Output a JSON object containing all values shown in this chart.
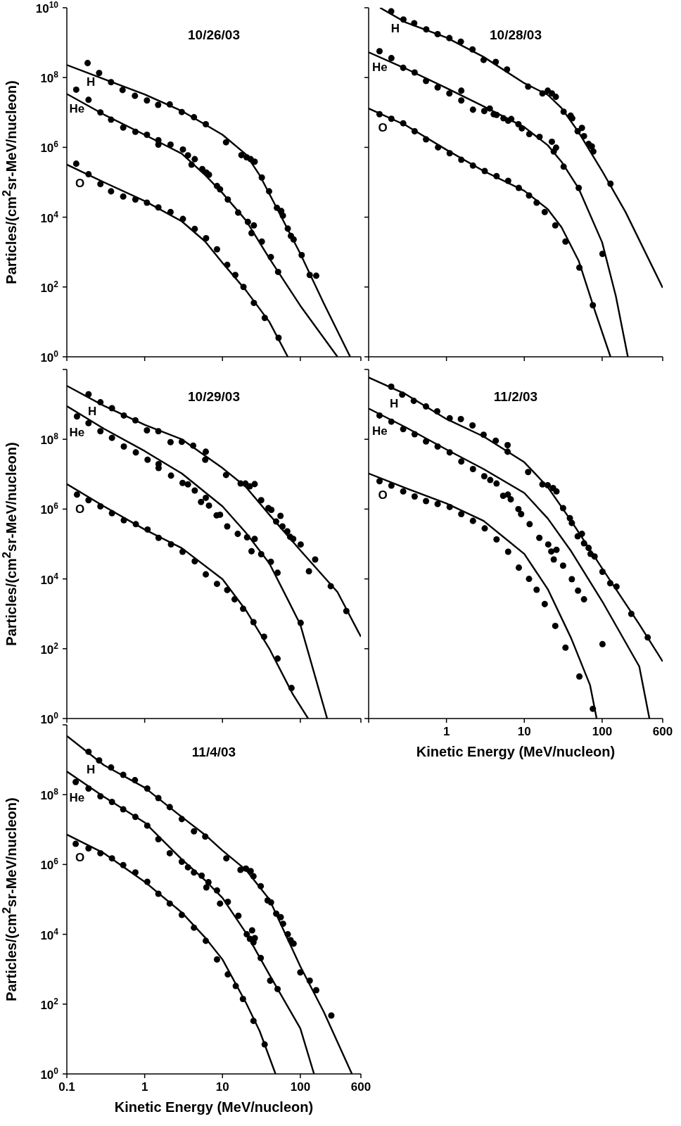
{
  "chart_data": [
    {
      "type": "scatter",
      "title": "10/26/03",
      "ylabel": "Particles/(cm$^{2}$sr-MeV/nucleon)",
      "xlim": [
        0.1,
        600
      ],
      "xticks": [
        0.1,
        1,
        10,
        100,
        600
      ],
      "ylim": [
        1,
        10000000000.0
      ],
      "yticks": [
        {
          "value": 1,
          "label": "10$^{0}$"
        },
        {
          "value": 100,
          "label": "10$^{2}$"
        },
        {
          "value": 10000.0,
          "label": "10$^{4}$"
        },
        {
          "value": 1000000.0,
          "label": "10$^{6}$"
        },
        {
          "value": 100000000.0,
          "label": "10$^{8}$"
        },
        {
          "value": 10000000000.0,
          "label": "10$^{10}$"
        }
      ],
      "log": "xy",
      "tick_labels": "y",
      "series": [
        {
          "name": "H",
          "color": "#000000",
          "marker": "circle",
          "x": [
            0.185,
            0.26,
            0.37,
            0.52,
            0.75,
            1.07,
            1.49,
            2.1,
            3.0,
            4.3,
            6.1,
            11.1,
            17.5,
            20.4,
            23,
            25.9,
            32,
            39.7,
            50,
            56.9,
            59.7,
            69,
            75.7,
            82,
            104,
            132,
            160
          ],
          "values": [
            260000000.0,
            135000000.0,
            74000000.0,
            44000000.0,
            30000000.0,
            22000000.0,
            16500000.0,
            17000000.0,
            10300000.0,
            7300000.0,
            4600000.0,
            1400000.0,
            600000.0,
            520000.0,
            460000.0,
            390000.0,
            137000.0,
            55000.0,
            18500.0,
            15000.0,
            11000.0,
            4700.0,
            2900.0,
            2300.0,
            820.0,
            220.0,
            210.0
          ]
        },
        {
          "name": "He",
          "color": "#000000",
          "marker": "circle",
          "x": [
            0.132,
            0.19,
            0.27,
            0.37,
            0.53,
            0.76,
            1.07,
            1.5,
            1.5,
            2.15,
            3.1,
            3.6,
            4.4,
            4.0,
            5.5,
            6.2,
            6.7,
            8.5,
            9.3,
            11.7,
            15.9,
            21.2,
            25.3,
            23.6,
            32,
            41.8,
            51.8
          ],
          "values": [
            45000000.0,
            23000000.0,
            10000000.0,
            6200000.0,
            3700000.0,
            2800000.0,
            2300000.0,
            1600000.0,
            1200000.0,
            1200000.0,
            870000.0,
            590000.0,
            460000.0,
            320000.0,
            240000.0,
            190000.0,
            165000.0,
            78000.0,
            63000.0,
            32000.0,
            13500.0,
            7300.0,
            5800.0,
            3500.0,
            2000.0,
            720.0,
            270.0
          ]
        },
        {
          "name": "O",
          "color": "#000000",
          "marker": "circle",
          "x": [
            0.132,
            0.19,
            0.27,
            0.37,
            0.53,
            0.76,
            1.07,
            1.5,
            2.15,
            3.1,
            4.4,
            6.15,
            8.5,
            11.5,
            14.6,
            18.6,
            25.3,
            34.9,
            52.5
          ],
          "values": [
            340000.0,
            170000.0,
            89000.0,
            55000.0,
            39000.0,
            32000.0,
            26000.0,
            19000.0,
            14000.0,
            8900.0,
            4600.0,
            2500.0,
            1200.0,
            430.0,
            220.0,
            100.0,
            35,
            13,
            3.5
          ]
        },
        {
          "type": "line",
          "color": "#000000",
          "x": [
            0.1,
            0.3,
            1,
            3,
            6,
            10,
            20,
            30,
            50,
            100,
            200,
            437
          ],
          "values": [
            230000000.0,
            90000000.0,
            33000000.0,
            11000000.0,
            4500000.0,
            2300000.0,
            630000.0,
            160000.0,
            18000.0,
            900.0,
            34,
            1
          ]
        },
        {
          "type": "line",
          "color": "#000000",
          "x": [
            0.1,
            0.3,
            1,
            3,
            6,
            10,
            20,
            40,
            100,
            300
          ],
          "values": [
            34000000.0,
            8700000.0,
            2300000.0,
            660000.0,
            160000.0,
            49000.0,
            8100.0,
            660.0,
            29,
            1
          ]
        },
        {
          "type": "line",
          "color": "#000000",
          "x": [
            0.1,
            0.3,
            1,
            3,
            6,
            10,
            20,
            40,
            69
          ],
          "values": [
            320000.0,
            100000.0,
            29000.0,
            7600.0,
            2000.0,
            490.0,
            80,
            10,
            1
          ]
        }
      ]
    },
    {
      "type": "scatter",
      "title": "10/28/03",
      "xlim": [
        0.1,
        600
      ],
      "xticks": [
        0.1,
        1,
        10,
        100,
        600
      ],
      "ylim": [
        1,
        10000000000.0
      ],
      "yticks": [
        1,
        100,
        10000.0,
        1000000.0,
        100000000.0,
        10000000000.0
      ],
      "log": "xy",
      "tick_labels": false,
      "series": [
        {
          "name": "H",
          "color": "#000000",
          "marker": "circle",
          "x": [
            0.195,
            0.28,
            0.385,
            0.55,
            0.77,
            1.09,
            1.53,
            2.16,
            3.0,
            4.3,
            6.0,
            11.2,
            17.1,
            20,
            22.6,
            25.4,
            32,
            39.4,
            41.3,
            48.5,
            55,
            58.5,
            67,
            73.7,
            77,
            128
          ],
          "values": [
            7900000000.0,
            4600000000.0,
            3600000000.0,
            2400000000.0,
            1750000000.0,
            1350000000.0,
            1070000000.0,
            640000000.0,
            320000000.0,
            280000000.0,
            170000000.0,
            55000000.0,
            35000000.0,
            42000000.0,
            35000000.0,
            28000000.0,
            10500000.0,
            8100000.0,
            6800000.0,
            2900000.0,
            3600000.0,
            2100000.0,
            1250000.0,
            1070000.0,
            760000.0,
            91000.0
          ]
        },
        {
          "name": "He",
          "color": "#000000",
          "marker": "circle",
          "x": [
            0.138,
            0.196,
            0.278,
            0.39,
            0.546,
            0.77,
            1.09,
            1.55,
            1.55,
            2.19,
            3.06,
            3.6,
            4.05,
            4.4,
            5.4,
            6.2,
            6.8,
            8.4,
            9.3,
            11.6,
            15.7,
            22.6,
            23.9,
            25.6,
            32,
            50,
            101
          ],
          "values": [
            570000000.0,
            360000000.0,
            190000000.0,
            140000000.0,
            80000000.0,
            52000000.0,
            35000000.0,
            42000000.0,
            22000000.0,
            12000000.0,
            11000000.0,
            13000000.0,
            8900000.0,
            8500000.0,
            6800000.0,
            5800000.0,
            6500000.0,
            4600000.0,
            3500000.0,
            2400000.0,
            2000000.0,
            1450000.0,
            760000.0,
            980000.0,
            280000.0,
            69000.0,
            890.0
          ]
        },
        {
          "name": "O",
          "color": "#000000",
          "marker": "circle",
          "x": [
            0.138,
            0.196,
            0.278,
            0.39,
            0.546,
            0.78,
            1.1,
            1.55,
            2.19,
            3.1,
            4.4,
            6.2,
            8.5,
            11.5,
            14.4,
            18.3,
            25,
            33.8,
            51,
            76
          ],
          "values": [
            8900000.0,
            6600000.0,
            4900000.0,
            2900000.0,
            1700000.0,
            1000000.0,
            680000.0,
            440000.0,
            300000.0,
            210000.0,
            150000.0,
            110000.0,
            69000.0,
            42000.0,
            26000.0,
            14000.0,
            5800.0,
            2000.0,
            360.0,
            30
          ]
        },
        {
          "type": "line",
          "color": "#000000",
          "x": [
            0.14,
            0.3,
            1,
            3,
            10,
            20,
            30,
            50,
            100,
            200,
            600
          ],
          "values": [
            10000000000.0,
            3800000000.0,
            1400000000.0,
            390000000.0,
            69000000.0,
            32000000.0,
            13500000.0,
            2700000.0,
            210000.0,
            14000.0,
            95
          ]
        },
        {
          "type": "line",
          "color": "#000000",
          "x": [
            0.1,
            0.3,
            1,
            3,
            10,
            20,
            30,
            50,
            100,
            150,
            214
          ],
          "values": [
            530000000.0,
            180000000.0,
            50000000.0,
            15000000.0,
            3800000.0,
            1150000.0,
            390000.0,
            66000.0,
            1900.0,
            55,
            1
          ]
        },
        {
          "type": "line",
          "color": "#000000",
          "x": [
            0.1,
            0.3,
            1,
            3,
            10,
            20,
            30,
            50,
            80,
            128
          ],
          "values": [
            13000000.0,
            4300000.0,
            850000.0,
            210000.0,
            57000.0,
            17000.0,
            5200.0,
            560.0,
            22,
            1
          ]
        }
      ]
    },
    {
      "type": "scatter",
      "title": "10/29/03",
      "ylabel": "Particles/(cm$^{2}$sr-MeV/nucleon)",
      "xlim": [
        0.1,
        600
      ],
      "xticks": [
        0.1,
        1,
        10,
        100,
        600
      ],
      "ylim": [
        1,
        10000000000.0
      ],
      "yticks": [
        {
          "value": 1,
          "label": "10$^{0}$"
        },
        {
          "value": 100,
          "label": "10$^{2}$"
        },
        {
          "value": 10000.0,
          "label": "10$^{4}$"
        },
        {
          "value": 1000000.0,
          "label": "10$^{6}$"
        },
        {
          "value": 100000000.0,
          "label": "10$^{8}$"
        },
        {
          "value": 10000000000.0,
          "label": null
        }
      ],
      "log": "xy",
      "tick_labels": "y",
      "series": [
        {
          "name": "H",
          "color": "#000000",
          "marker": "circle",
          "x": [
            0.19,
            0.27,
            0.38,
            0.54,
            0.76,
            1.07,
            1.5,
            2.15,
            3.0,
            4.2,
            6.1,
            6.0,
            11.1,
            17.1,
            19.7,
            22.4,
            25.9,
            31.4,
            38.9,
            42.4,
            48.9,
            55.6,
            58.9,
            68,
            74,
            81,
            101,
            129,
            155,
            246,
            390
          ],
          "values": [
            1950000000.0,
            1150000000.0,
            780000000.0,
            480000000.0,
            350000000.0,
            180000000.0,
            170000000.0,
            83000000.0,
            85000000.0,
            66000000.0,
            44000000.0,
            26000000.0,
            9500000.0,
            5400000.0,
            5400000.0,
            4500000.0,
            5200000.0,
            1800000.0,
            1070000.0,
            950000.0,
            440000.0,
            640000.0,
            320000.0,
            230000.0,
            160000.0,
            140000.0,
            97000.0,
            16500.0,
            36000.0,
            6200.0,
            1200.0
          ]
        },
        {
          "name": "He",
          "color": "#000000",
          "marker": "circle",
          "x": [
            0.135,
            0.19,
            0.27,
            0.38,
            0.54,
            0.77,
            1.09,
            1.51,
            1.51,
            2.18,
            3.07,
            3.6,
            4.4,
            5.3,
            6.1,
            6.7,
            8.4,
            9.3,
            11.5,
            15.7,
            20.7,
            25.9,
            23.6,
            31.4,
            41.8,
            51,
            101
          ],
          "values": [
            450000000.0,
            290000000.0,
            170000000.0,
            110000000.0,
            62000000.0,
            42000000.0,
            26000000.0,
            19500000.0,
            15000000.0,
            9100000.0,
            5600000.0,
            5100000.0,
            3400000.0,
            1600000.0,
            2100000.0,
            1260000.0,
            660000.0,
            690000.0,
            320000.0,
            195000.0,
            155000.0,
            140000.0,
            62000.0,
            51000.0,
            31000.0,
            15000.0,
            550.0
          ]
        },
        {
          "name": "O",
          "color": "#000000",
          "marker": "circle",
          "x": [
            0.135,
            0.19,
            0.27,
            0.38,
            0.54,
            0.77,
            1.09,
            1.51,
            2.18,
            3.07,
            4.4,
            6.1,
            8.5,
            11.5,
            14.3,
            18.4,
            25,
            34.2,
            51,
            77
          ],
          "values": [
            2600000.0,
            1800000.0,
            1200000.0,
            760000.0,
            480000.0,
            370000.0,
            260000.0,
            150000.0,
            98000.0,
            60000.0,
            32000.0,
            13500.0,
            7200.0,
            4800.0,
            2600.0,
            1400.0,
            580.0,
            220.0,
            52,
            7.5
          ]
        },
        {
          "type": "line",
          "color": "#000000",
          "x": [
            0.1,
            0.3,
            1,
            3,
            10,
            20,
            40,
            100,
            300,
            600
          ],
          "values": [
            3400000000.0,
            910000000.0,
            260000000.0,
            100000000.0,
            15000000.0,
            4300000.0,
            690000.0,
            66000.0,
            4200.0,
            220.0
          ]
        },
        {
          "type": "line",
          "color": "#000000",
          "x": [
            0.1,
            0.3,
            1,
            3,
            10,
            20,
            40,
            70,
            100,
            221
          ],
          "values": [
            890000000.0,
            200000000.0,
            46000000.0,
            10500000.0,
            1200000.0,
            210000.0,
            28000.0,
            2400.0,
            490.0,
            1
          ]
        },
        {
          "type": "line",
          "color": "#000000",
          "x": [
            0.1,
            0.3,
            1,
            3,
            10,
            20,
            40,
            80,
            126
          ],
          "values": [
            5200000.0,
            1200000.0,
            260000.0,
            76000.0,
            9800.0,
            1260.0,
            100.0,
            5,
            1
          ]
        }
      ]
    },
    {
      "type": "scatter",
      "title": "11/2/03",
      "xlabel": "Kinetic Energy (MeV/nucleon)",
      "xlim": [
        0.1,
        600
      ],
      "xticks": [
        {
          "value": 0.1,
          "label": null
        },
        1,
        10,
        100,
        600
      ],
      "ylim": [
        1,
        10000000000.0
      ],
      "yticks": [
        1,
        100,
        10000.0,
        1000000.0,
        100000000.0,
        10000000000.0
      ],
      "log": "xy",
      "tick_labels": "x",
      "series": [
        {
          "name": "H",
          "color": "#000000",
          "marker": "circle",
          "x": [
            0.195,
            0.27,
            0.38,
            0.546,
            0.76,
            1.1,
            1.53,
            2.16,
            3.0,
            4.3,
            6.1,
            6.1,
            11.2,
            17.1,
            20,
            23.4,
            25.9,
            31.5,
            38.5,
            40.8,
            48.5,
            55,
            58.5,
            67,
            71,
            80,
            101,
            127,
            153,
            237,
            385
          ],
          "values": [
            3200000000.0,
            1900000000.0,
            1260000000.0,
            870000000.0,
            630000000.0,
            400000000.0,
            380000000.0,
            250000000.0,
            135000000.0,
            91000000.0,
            68000000.0,
            44000000.0,
            11500000.0,
            5100000.0,
            4800000.0,
            4000000.0,
            3200000.0,
            1070000.0,
            550000.0,
            400000.0,
            166000.0,
            195000.0,
            105000.0,
            77000.0,
            52000.0,
            44000.0,
            16000.0,
            7500.0,
            6000.0,
            1000.0,
            210.0
          ]
        },
        {
          "name": "He",
          "color": "#000000",
          "marker": "circle",
          "x": [
            0.138,
            0.196,
            0.278,
            0.39,
            0.546,
            0.77,
            1.1,
            1.55,
            2.19,
            3.06,
            3.65,
            4.4,
            5.35,
            6.15,
            6.7,
            8.4,
            9.1,
            11.7,
            15.6,
            20.3,
            22.2,
            25.9,
            23.9,
            31.5,
            40.8,
            49,
            58.5,
            101
          ],
          "values": [
            480000000.0,
            320000000.0,
            195000000.0,
            140000000.0,
            87000000.0,
            62000000.0,
            42000000.0,
            23000000.0,
            14000000.0,
            8700000.0,
            6800000.0,
            5400000.0,
            2400000.0,
            2600000.0,
            1900000.0,
            1000000.0,
            720000.0,
            370000.0,
            150000.0,
            97000.0,
            61000.0,
            68000.0,
            36000.0,
            24000.0,
            9800.0,
            4600.0,
            2600.0,
            135.0
          ]
        },
        {
          "name": "O",
          "color": "#000000",
          "marker": "circle",
          "x": [
            0.138,
            0.196,
            0.278,
            0.39,
            0.546,
            0.77,
            1.1,
            1.55,
            2.19,
            3.1,
            4.4,
            6.2,
            8.5,
            11.5,
            14.4,
            18.3,
            25,
            33.8,
            51,
            76
          ],
          "values": [
            6300000.0,
            4700000.0,
            3200000.0,
            2300000.0,
            1700000.0,
            1400000.0,
            1150000.0,
            720000.0,
            460000.0,
            280000.0,
            135000.0,
            60000.0,
            21000.0,
            10000.0,
            4900.0,
            1900.0,
            450.0,
            107.0,
            16,
            1.9
          ]
        },
        {
          "type": "line",
          "color": "#000000",
          "x": [
            0.1,
            0.3,
            1,
            3,
            10,
            20,
            40,
            100,
            300,
            600
          ],
          "values": [
            5900000000.0,
            1950000000.0,
            380000000.0,
            120000000.0,
            22000000.0,
            4300000.0,
            460000.0,
            20000.0,
            500.0,
            43
          ]
        },
        {
          "type": "line",
          "color": "#000000",
          "x": [
            0.1,
            0.3,
            1,
            3,
            10,
            20,
            40,
            100,
            300,
            405
          ],
          "values": [
            760000000.0,
            220000000.0,
            51000000.0,
            14000000.0,
            2900000.0,
            540000.0,
            62000.0,
            2300.0,
            31,
            1
          ]
        },
        {
          "type": "line",
          "color": "#000000",
          "x": [
            0.1,
            0.3,
            1,
            3,
            10,
            20,
            40,
            70,
            85
          ],
          "values": [
            10500000.0,
            4000000.0,
            1450000.0,
            460000.0,
            52000.0,
            5100.0,
            200.0,
            9,
            1
          ]
        }
      ]
    },
    {
      "type": "scatter",
      "title": "11/4/03",
      "xlabel": "Kinetic Energy (MeV/nucleon)",
      "ylabel": "Particles/(cm$^{2}$sr-MeV/nucleon)",
      "xlim": [
        0.1,
        600
      ],
      "xticks": [
        0.1,
        1,
        10,
        100,
        600
      ],
      "ylim": [
        1,
        10000000000.0
      ],
      "yticks": [
        {
          "value": 1,
          "label": "10$^{0}$"
        },
        {
          "value": 100,
          "label": "10$^{2}$"
        },
        {
          "value": 10000.0,
          "label": "10$^{4}$"
        },
        {
          "value": 1000000.0,
          "label": "10$^{6}$"
        },
        {
          "value": 100000000.0,
          "label": "10$^{8}$"
        },
        {
          "value": 10000000000.0,
          "label": null
        }
      ],
      "log": "xy",
      "series": [
        {
          "name": "H",
          "color": "#000000",
          "marker": "circle",
          "x": [
            0.19,
            0.26,
            0.37,
            0.53,
            0.75,
            1.08,
            1.5,
            2.1,
            3.0,
            4.3,
            6.0,
            11.2,
            17,
            20,
            23,
            25,
            31,
            38,
            42,
            49,
            56,
            60,
            69,
            75,
            82,
            100,
            132,
            160,
            250
          ],
          "values": [
            1700000000.0,
            960000000.0,
            600000000.0,
            370000000.0,
            260000000.0,
            150000000.0,
            80000000.0,
            44000000.0,
            20000000.0,
            8900000.0,
            6300000.0,
            1500000.0,
            700000.0,
            760000.0,
            650000.0,
            460000.0,
            240000.0,
            93000.0,
            82000.0,
            39000.0,
            31000.0,
            20000.0,
            10000.0,
            6800.0,
            5400.0,
            810.0,
            470.0,
            250.0,
            47
          ]
        },
        {
          "name": "He",
          "color": "#000000",
          "marker": "circle",
          "x": [
            0.13,
            0.19,
            0.27,
            0.38,
            0.53,
            0.76,
            1.08,
            1.5,
            2.1,
            3.0,
            3.6,
            4.3,
            5.4,
            6.2,
            6.6,
            8.5,
            9.3,
            11.7,
            16,
            20.5,
            24,
            22.5,
            26,
            25,
            31,
            41,
            51
          ],
          "values": [
            230000000.0,
            150000000.0,
            90000000.0,
            62000000.0,
            38000000.0,
            23000000.0,
            13000000.0,
            5300000.0,
            2100000.0,
            1200000.0,
            830000.0,
            590000.0,
            480000.0,
            220000.0,
            310000.0,
            180000.0,
            76000.0,
            85000.0,
            34000.0,
            10000.0,
            13000.0,
            7400.0,
            7800.0,
            5900.0,
            2100.0,
            470.0,
            270.0
          ]
        },
        {
          "name": "O",
          "color": "#000000",
          "marker": "circle",
          "x": [
            0.13,
            0.19,
            0.27,
            0.38,
            0.53,
            0.76,
            1.08,
            1.5,
            2.1,
            3.0,
            4.3,
            6.1,
            8.5,
            11.7,
            14.8,
            18.3,
            25,
            34.8
          ],
          "values": [
            3900000.0,
            2900000.0,
            2100000.0,
            1500000.0,
            960000.0,
            590000.0,
            320000.0,
            145000.0,
            76000.0,
            36000.0,
            15500.0,
            6500.0,
            1900.0,
            710.0,
            330.0,
            140.0,
            33,
            7
          ]
        },
        {
          "type": "line",
          "color": "#000000",
          "x": [
            0.1,
            0.3,
            1,
            3,
            6,
            10,
            20,
            40,
            100,
            200,
            460
          ],
          "values": [
            4800000000.0,
            700000000.0,
            160000000.0,
            23000000.0,
            7000000.0,
            2500000.0,
            700000.0,
            100000.0,
            1200.0,
            60,
            1
          ]
        },
        {
          "type": "line",
          "color": "#000000",
          "x": [
            0.1,
            0.3,
            1,
            3,
            6,
            10,
            20,
            40,
            100,
            150
          ],
          "values": [
            460000000.0,
            87000000.0,
            16000000.0,
            1400000.0,
            350000.0,
            110000.0,
            11000.0,
            700.0,
            20,
            1
          ]
        },
        {
          "type": "line",
          "color": "#000000",
          "x": [
            0.1,
            0.3,
            1,
            3,
            6,
            10,
            20,
            30,
            48
          ],
          "values": [
            7200000.0,
            2100000.0,
            320000.0,
            42000.0,
            8000.0,
            1900.0,
            110.0,
            17,
            1
          ]
        }
      ]
    }
  ]
}
